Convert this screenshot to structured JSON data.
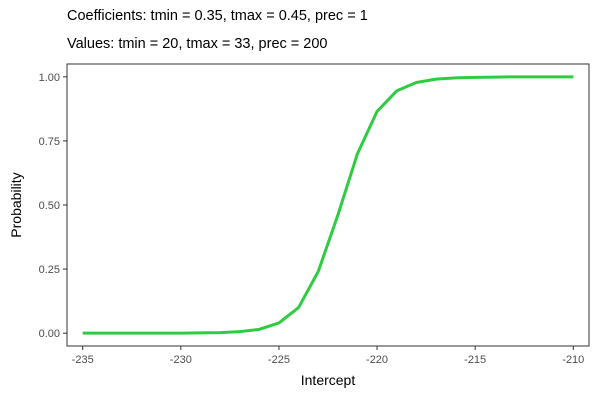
{
  "chart_data": {
    "type": "line",
    "title": "Coefficients: tmin = 0.35, tmax = 0.45, prec = 1",
    "subtitle": "Values: tmin = 20, tmax = 33, prec = 200",
    "xlabel": "Intercept",
    "ylabel": "Probability",
    "xlim": [
      -235.8,
      -209.2
    ],
    "ylim": [
      -0.05,
      1.05
    ],
    "x_ticks": [
      -235,
      -230,
      -225,
      -220,
      -215,
      -210
    ],
    "x_tick_labels": [
      "-235",
      "-230",
      "-225",
      "-220",
      "-215",
      "-210"
    ],
    "y_ticks": [
      0,
      0.25,
      0.5,
      0.75,
      1
    ],
    "y_tick_labels": [
      "0.00",
      "0.25",
      "0.50",
      "0.75",
      "1.00"
    ],
    "grid": false,
    "series": [
      {
        "color": "#2ecc40",
        "x": [
          -235,
          -234,
          -233,
          -232,
          -231,
          -230,
          -229,
          -228,
          -227,
          -226,
          -225,
          -224,
          -223,
          -222,
          -221,
          -220,
          -219,
          -218,
          -217,
          -216,
          -215,
          -214,
          -213,
          -212,
          -211,
          -210
        ],
        "y": [
          0.0,
          0.0,
          0.0,
          0.0,
          0.0,
          0.0,
          0.001,
          0.002,
          0.006,
          0.015,
          0.04,
          0.1,
          0.24,
          0.46,
          0.7,
          0.865,
          0.945,
          0.978,
          0.991,
          0.996,
          0.998,
          0.999,
          1.0,
          1.0,
          1.0,
          1.0
        ]
      }
    ]
  }
}
